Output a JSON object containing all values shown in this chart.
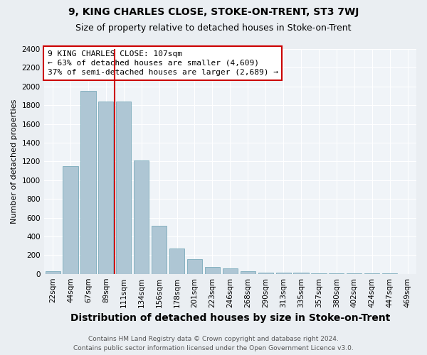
{
  "title_line1": "9, KING CHARLES CLOSE, STOKE-ON-TRENT, ST3 7WJ",
  "title_line2": "Size of property relative to detached houses in Stoke-on-Trent",
  "xlabel": "Distribution of detached houses by size in Stoke-on-Trent",
  "ylabel": "Number of detached properties",
  "categories": [
    "22sqm",
    "44sqm",
    "67sqm",
    "89sqm",
    "111sqm",
    "134sqm",
    "156sqm",
    "178sqm",
    "201sqm",
    "223sqm",
    "246sqm",
    "268sqm",
    "290sqm",
    "313sqm",
    "335sqm",
    "357sqm",
    "380sqm",
    "402sqm",
    "424sqm",
    "447sqm",
    "469sqm"
  ],
  "values": [
    30,
    1150,
    1950,
    1840,
    1840,
    1210,
    510,
    270,
    155,
    70,
    55,
    30,
    15,
    10,
    10,
    5,
    5,
    3,
    2,
    2,
    0
  ],
  "bar_color": "#aec6d4",
  "bar_edge_color": "#7aaabb",
  "vline_x_index": 4,
  "vline_color": "#cc0000",
  "annotation_text": "9 KING CHARLES CLOSE: 107sqm\n← 63% of detached houses are smaller (4,609)\n37% of semi-detached houses are larger (2,689) →",
  "annotation_box_color": "#ffffff",
  "annotation_box_edge_color": "#cc0000",
  "ylim": [
    0,
    2400
  ],
  "yticks": [
    0,
    200,
    400,
    600,
    800,
    1000,
    1200,
    1400,
    1600,
    1800,
    2000,
    2200,
    2400
  ],
  "footer_line1": "Contains HM Land Registry data © Crown copyright and database right 2024.",
  "footer_line2": "Contains public sector information licensed under the Open Government Licence v3.0.",
  "bg_color": "#eaeef2",
  "plot_bg_color": "#f0f4f8",
  "grid_color": "#ffffff",
  "title_fontsize": 10,
  "subtitle_fontsize": 9,
  "xlabel_fontsize": 10,
  "ylabel_fontsize": 8,
  "tick_fontsize": 7.5,
  "annotation_fontsize": 8,
  "footer_fontsize": 6.5
}
